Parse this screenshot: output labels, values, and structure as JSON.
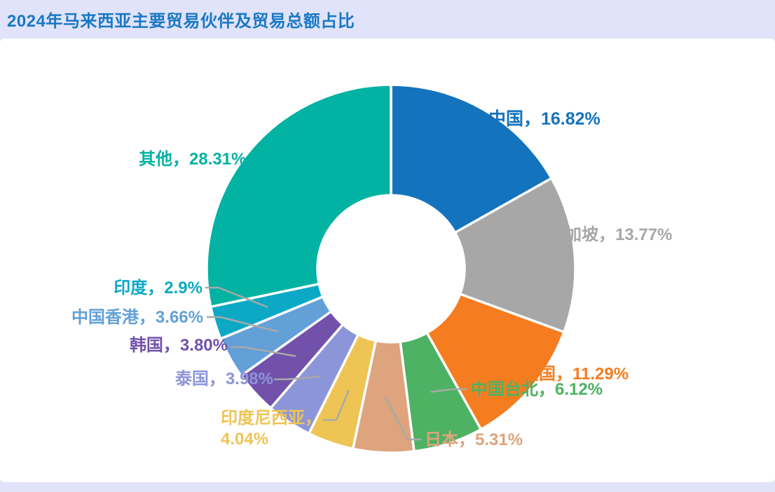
{
  "page": {
    "background_color": "#e0e3f9",
    "card_background_color": "#ffffff"
  },
  "header": {
    "title": "2024年马来西亚主要贸易伙伴及贸易总额占比",
    "title_color": "#1a78c4"
  },
  "chart_data": {
    "type": "pie",
    "subtype": "donut",
    "title": "2024年马来西亚主要贸易伙伴及贸易总额占比",
    "start_angle_deg": 0,
    "direction": "clockwise",
    "unit": "%",
    "leader_line_color": "#a9a9a9",
    "segments": [
      {
        "name": "中国",
        "value": 16.82,
        "display": "中国，16.82%",
        "color": "#1473bd"
      },
      {
        "name": "新加坡",
        "value": 13.77,
        "display": "新加坡，13.77%",
        "color": "#a7a7a7"
      },
      {
        "name": "美国",
        "value": 11.29,
        "display": "美国，11.29%",
        "color": "#f57d20"
      },
      {
        "name": "中国台北",
        "value": 6.12,
        "display": "中国台北，6.12%",
        "color": "#4db263"
      },
      {
        "name": "日本",
        "value": 5.31,
        "display": "日本，5.31%",
        "color": "#dda47d"
      },
      {
        "name": "印度尼西亚",
        "value": 4.04,
        "display": "印度尼西亚，4.04%",
        "color": "#eec455"
      },
      {
        "name": "泰国",
        "value": 3.98,
        "display": "泰国，3.98%",
        "color": "#8d95d9"
      },
      {
        "name": "韩国",
        "value": 3.8,
        "display": "韩国，3.80%",
        "color": "#7251ab"
      },
      {
        "name": "中国香港",
        "value": 3.66,
        "display": "中国香港，3.66%",
        "color": "#63a0d8"
      },
      {
        "name": "印度",
        "value": 2.9,
        "display": "印度，2.9%",
        "color": "#0ba9c5"
      },
      {
        "name": "其他",
        "value": 28.31,
        "display": "其他，28.31%",
        "color": "#02b2a2"
      }
    ]
  }
}
